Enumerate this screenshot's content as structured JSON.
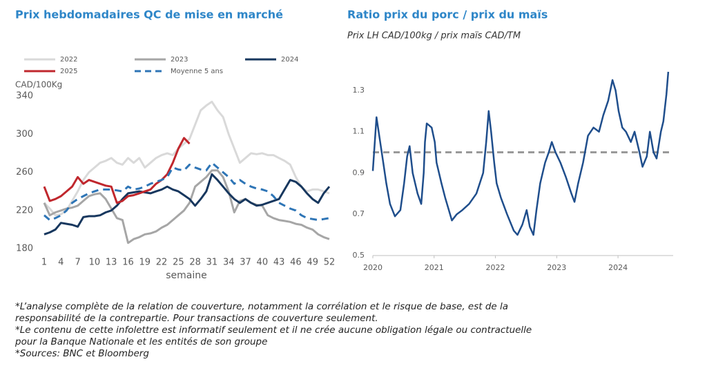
{
  "chart_data": [
    {
      "type": "line",
      "title": "Prix hebdomadaires QC de mise en marché",
      "ylabel": "CAD/100Kg",
      "xlabel": "semaine",
      "x": [
        1,
        2,
        3,
        4,
        5,
        6,
        7,
        8,
        9,
        10,
        11,
        12,
        13,
        14,
        15,
        16,
        17,
        18,
        19,
        20,
        21,
        22,
        23,
        24,
        25,
        26,
        27,
        28,
        29,
        30,
        31,
        32,
        33,
        34,
        35,
        36,
        37,
        38,
        39,
        40,
        41,
        42,
        43,
        44,
        45,
        46,
        47,
        48,
        49,
        50,
        51,
        52
      ],
      "xlim": [
        1,
        52
      ],
      "xticks": [
        1,
        4,
        7,
        10,
        13,
        16,
        19,
        22,
        25,
        28,
        31,
        34,
        37,
        40,
        43,
        46,
        49,
        52
      ],
      "ylim": [
        180,
        340
      ],
      "yticks": [
        180,
        220,
        260,
        300,
        340
      ],
      "grid": false,
      "series": [
        {
          "name": "2022",
          "color": "#d9d9d9",
          "style": "solid",
          "values": [
            228,
            222,
            215,
            216,
            220,
            230,
            240,
            252,
            260,
            265,
            270,
            272,
            275,
            270,
            268,
            275,
            270,
            275,
            265,
            270,
            275,
            278,
            280,
            278,
            285,
            290,
            295,
            310,
            325,
            330,
            334,
            325,
            318,
            300,
            285,
            270,
            275,
            280,
            279,
            280,
            278,
            278,
            275,
            272,
            268,
            255,
            245,
            240,
            242,
            242,
            240,
            238
          ]
        },
        {
          "name": "2023",
          "color": "#a6a6a6",
          "style": "solid",
          "values": [
            228,
            215,
            218,
            220,
            222,
            223,
            225,
            230,
            235,
            237,
            238,
            232,
            222,
            212,
            210,
            186,
            190,
            192,
            195,
            196,
            198,
            202,
            205,
            210,
            215,
            220,
            228,
            245,
            250,
            255,
            262,
            262,
            255,
            240,
            218,
            230,
            232,
            228,
            226,
            225,
            215,
            212,
            210,
            209,
            208,
            206,
            205,
            202,
            200,
            195,
            192,
            190
          ]
        },
        {
          "name": "2024",
          "color": "#17375e",
          "style": "solid",
          "values": [
            195,
            197,
            200,
            207,
            206,
            205,
            203,
            213,
            214,
            214,
            215,
            218,
            220,
            225,
            232,
            238,
            239,
            240,
            239,
            238,
            240,
            242,
            245,
            242,
            240,
            236,
            232,
            225,
            232,
            240,
            258,
            252,
            245,
            238,
            232,
            228,
            232,
            228,
            225,
            226,
            228,
            230,
            232,
            242,
            252,
            250,
            245,
            238,
            232,
            228,
            238,
            245
          ]
        },
        {
          "name": "2025",
          "color": "#c0272d",
          "style": "solid",
          "values": [
            245,
            230,
            232,
            235,
            240,
            245,
            255,
            248,
            252,
            250,
            248,
            246,
            245,
            228,
            230,
            235,
            236,
            238,
            240,
            242,
            248,
            252,
            258,
            270,
            285,
            296,
            290,
            null,
            null,
            null,
            null,
            null,
            null,
            null,
            null,
            null,
            null,
            null,
            null,
            null,
            null,
            null,
            null,
            null,
            null,
            null,
            null,
            null,
            null,
            null,
            null,
            null
          ]
        },
        {
          "name": "Moyenne 5 ans",
          "color": "#2e75b6",
          "style": "dashed",
          "values": [
            215,
            210,
            212,
            215,
            220,
            228,
            232,
            235,
            238,
            240,
            242,
            242,
            242,
            241,
            240,
            245,
            242,
            243,
            245,
            248,
            250,
            252,
            255,
            265,
            263,
            262,
            268,
            265,
            263,
            262,
            270,
            265,
            260,
            255,
            248,
            252,
            248,
            245,
            243,
            242,
            240,
            235,
            228,
            225,
            222,
            220,
            215,
            212,
            211,
            210,
            211,
            212
          ]
        }
      ]
    },
    {
      "type": "line",
      "title": "Ratio prix du porc / prix du maïs",
      "subtitle": "Prix LH CAD/100kg / prix maïs CAD/TM",
      "x": [
        2020.0,
        2020.06,
        2020.17,
        2020.22,
        2020.28,
        2020.36,
        2020.45,
        2020.51,
        2020.56,
        2020.6,
        2020.65,
        2020.73,
        2020.79,
        2020.83,
        2020.85,
        2020.88,
        2020.96,
        2021.01,
        2021.04,
        2021.12,
        2021.18,
        2021.24,
        2021.29,
        2021.37,
        2021.46,
        2021.57,
        2021.69,
        2021.8,
        2021.85,
        2021.89,
        2021.93,
        2021.98,
        2022.02,
        2022.09,
        2022.19,
        2022.3,
        2022.36,
        2022.44,
        2022.51,
        2022.56,
        2022.62,
        2022.67,
        2022.73,
        2022.81,
        2022.87,
        2022.92,
        2022.98,
        2023.06,
        2023.15,
        2023.24,
        2023.29,
        2023.35,
        2023.43,
        2023.51,
        2023.6,
        2023.69,
        2023.76,
        2023.84,
        2023.91,
        2023.96,
        2024.01,
        2024.07,
        2024.13,
        2024.21,
        2024.27,
        2024.35,
        2024.4,
        2024.47,
        2024.52,
        2024.58,
        2024.63,
        2024.7,
        2024.74,
        2024.79,
        2024.82
      ],
      "xlim": [
        2020,
        2024.9
      ],
      "xticks": [
        2020,
        2021,
        2022,
        2023,
        2024
      ],
      "ylim": [
        0.5,
        1.4
      ],
      "yticks": [
        {
          "value": 0.5,
          "label": "0.5"
        },
        {
          "value": 0.7,
          "label": "0.7"
        },
        {
          "value": 0.9,
          "label": "0.9"
        },
        {
          "value": 1.1,
          "label": "1.1"
        },
        {
          "value": 1.3,
          "label": "1.3"
        }
      ],
      "grid": false,
      "reference_line": {
        "value": 1.0,
        "color": "#999999"
      },
      "series": [
        {
          "color": "#1f4e8c",
          "style": "solid",
          "values": [
            0.91,
            1.17,
            0.95,
            0.85,
            0.75,
            0.69,
            0.72,
            0.85,
            0.98,
            1.03,
            0.9,
            0.8,
            0.75,
            0.9,
            1.05,
            1.14,
            1.12,
            1.05,
            0.95,
            0.85,
            0.78,
            0.72,
            0.67,
            0.7,
            0.72,
            0.75,
            0.8,
            0.9,
            1.05,
            1.2,
            1.1,
            0.95,
            0.85,
            0.78,
            0.7,
            0.62,
            0.6,
            0.65,
            0.72,
            0.64,
            0.6,
            0.72,
            0.85,
            0.95,
            1.0,
            1.05,
            1.0,
            0.95,
            0.88,
            0.8,
            0.76,
            0.85,
            0.95,
            1.08,
            1.12,
            1.1,
            1.18,
            1.25,
            1.35,
            1.3,
            1.2,
            1.12,
            1.1,
            1.05,
            1.1,
            1.0,
            0.93,
            0.98,
            1.1,
            1.0,
            0.97,
            1.1,
            1.15,
            1.28,
            1.39
          ]
        }
      ]
    }
  ],
  "footnotes": [
    "*L’analyse complète de la relation de couverture, notamment la corrélation et le risque de base, est de la",
    "responsabilité de la contrepartie. Pour transactions de couverture seulement.",
    "*Le contenu de cette infolettre est informatif seulement et il ne crée aucune obligation légale ou contractuelle",
    "pour la Banque Nationale et les entités de son groupe",
    "*Sources: BNC et Bloomberg"
  ]
}
